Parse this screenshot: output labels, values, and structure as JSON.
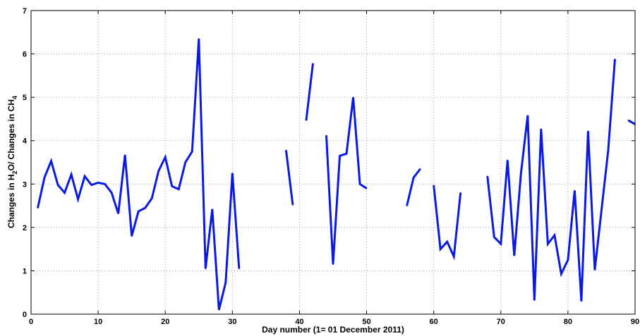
{
  "chart_data": {
    "type": "line",
    "xlabel": "Day number (1= 01 December 2011)",
    "ylabel_parts": [
      "Changes in H",
      "2",
      "O/ Changes in CH",
      "4"
    ],
    "xlim": [
      0,
      90
    ],
    "ylim": [
      0,
      7
    ],
    "xticks": [
      0,
      10,
      20,
      30,
      40,
      50,
      60,
      70,
      80,
      90
    ],
    "yticks": [
      0,
      1,
      2,
      3,
      4,
      5,
      6,
      7
    ],
    "grid": true,
    "line_color": "#0a1ae0",
    "segments": [
      [
        [
          1,
          2.45
        ],
        [
          2,
          3.15
        ],
        [
          3,
          3.53
        ],
        [
          4,
          2.98
        ],
        [
          5,
          2.8
        ],
        [
          6,
          3.22
        ],
        [
          7,
          2.65
        ],
        [
          8,
          3.18
        ],
        [
          9,
          2.98
        ],
        [
          10,
          3.03
        ],
        [
          11,
          3.0
        ],
        [
          12,
          2.8
        ],
        [
          13,
          2.32
        ],
        [
          14,
          3.67
        ],
        [
          15,
          1.8
        ],
        [
          16,
          2.37
        ],
        [
          17,
          2.45
        ],
        [
          18,
          2.67
        ],
        [
          19,
          3.3
        ],
        [
          20,
          3.62
        ],
        [
          21,
          2.95
        ],
        [
          22,
          2.88
        ],
        [
          23,
          3.5
        ],
        [
          24,
          3.75
        ],
        [
          25,
          6.35
        ],
        [
          26,
          1.05
        ],
        [
          27,
          2.42
        ],
        [
          28,
          0.1
        ],
        [
          29,
          0.73
        ],
        [
          30,
          3.25
        ],
        [
          31,
          1.05
        ]
      ],
      [
        [
          38,
          3.78
        ],
        [
          39,
          2.52
        ]
      ],
      [
        [
          41,
          4.47
        ],
        [
          42,
          5.78
        ]
      ],
      [
        [
          44,
          4.12
        ],
        [
          45,
          1.15
        ],
        [
          46,
          3.65
        ],
        [
          47,
          3.7
        ],
        [
          48,
          5.0
        ],
        [
          49,
          3.0
        ],
        [
          50,
          2.9
        ]
      ],
      [
        [
          56,
          2.5
        ],
        [
          57,
          3.15
        ],
        [
          58,
          3.35
        ]
      ],
      [
        [
          60,
          2.97
        ],
        [
          61,
          1.5
        ],
        [
          62,
          1.67
        ],
        [
          63,
          1.33
        ],
        [
          64,
          2.8
        ]
      ],
      [
        [
          68,
          3.18
        ],
        [
          69,
          1.78
        ],
        [
          70,
          1.62
        ],
        [
          71,
          3.55
        ],
        [
          72,
          1.35
        ],
        [
          73,
          3.25
        ],
        [
          74,
          4.58
        ],
        [
          75,
          0.32
        ],
        [
          76,
          4.27
        ],
        [
          77,
          1.62
        ],
        [
          78,
          1.82
        ],
        [
          79,
          0.93
        ],
        [
          80,
          1.25
        ],
        [
          81,
          2.85
        ],
        [
          82,
          0.3
        ],
        [
          83,
          4.22
        ],
        [
          84,
          1.02
        ],
        [
          85,
          2.4
        ],
        [
          86,
          3.78
        ],
        [
          87,
          5.88
        ]
      ],
      [
        [
          89,
          4.47
        ],
        [
          90,
          4.38
        ]
      ]
    ]
  }
}
